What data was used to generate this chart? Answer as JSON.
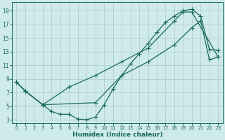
{
  "xlabel": "Humidex (Indice chaleur)",
  "bg_color": "#ceeaea",
  "grid_color": "#adc8c8",
  "line_color": "#1a6b5a",
  "xlim": [
    -0.5,
    23.5
  ],
  "ylim": [
    2.5,
    20.2
  ],
  "xticks": [
    0,
    1,
    2,
    3,
    4,
    5,
    6,
    7,
    8,
    9,
    10,
    11,
    12,
    13,
    14,
    15,
    16,
    17,
    18,
    19,
    20,
    21,
    22,
    23
  ],
  "yticks": [
    3,
    5,
    7,
    9,
    11,
    13,
    15,
    17,
    19
  ],
  "curve1_x": [
    0,
    1,
    3,
    9,
    12,
    15,
    18,
    20,
    21,
    22,
    23
  ],
  "curve1_y": [
    8.5,
    7.2,
    5.2,
    5.5,
    9.5,
    11.5,
    14.0,
    16.5,
    17.5,
    11.8,
    12.2
  ],
  "curve2_x": [
    0,
    1,
    3,
    4,
    5,
    6,
    7,
    8,
    9,
    10,
    11,
    12,
    13,
    14,
    15,
    16,
    17,
    18,
    19,
    20,
    21,
    22,
    23
  ],
  "curve2_y": [
    8.5,
    7.2,
    5.2,
    4.2,
    3.8,
    3.8,
    3.1,
    3.0,
    3.4,
    5.2,
    7.5,
    9.5,
    11.2,
    12.7,
    14.2,
    15.8,
    17.3,
    18.2,
    19.0,
    19.2,
    18.2,
    13.3,
    13.2
  ],
  "curve3_x": [
    0,
    1,
    3,
    6,
    9,
    12,
    15,
    18,
    19,
    20,
    23
  ],
  "curve3_y": [
    8.5,
    7.2,
    5.2,
    7.8,
    9.5,
    11.5,
    13.5,
    17.5,
    18.8,
    18.8,
    12.2
  ]
}
